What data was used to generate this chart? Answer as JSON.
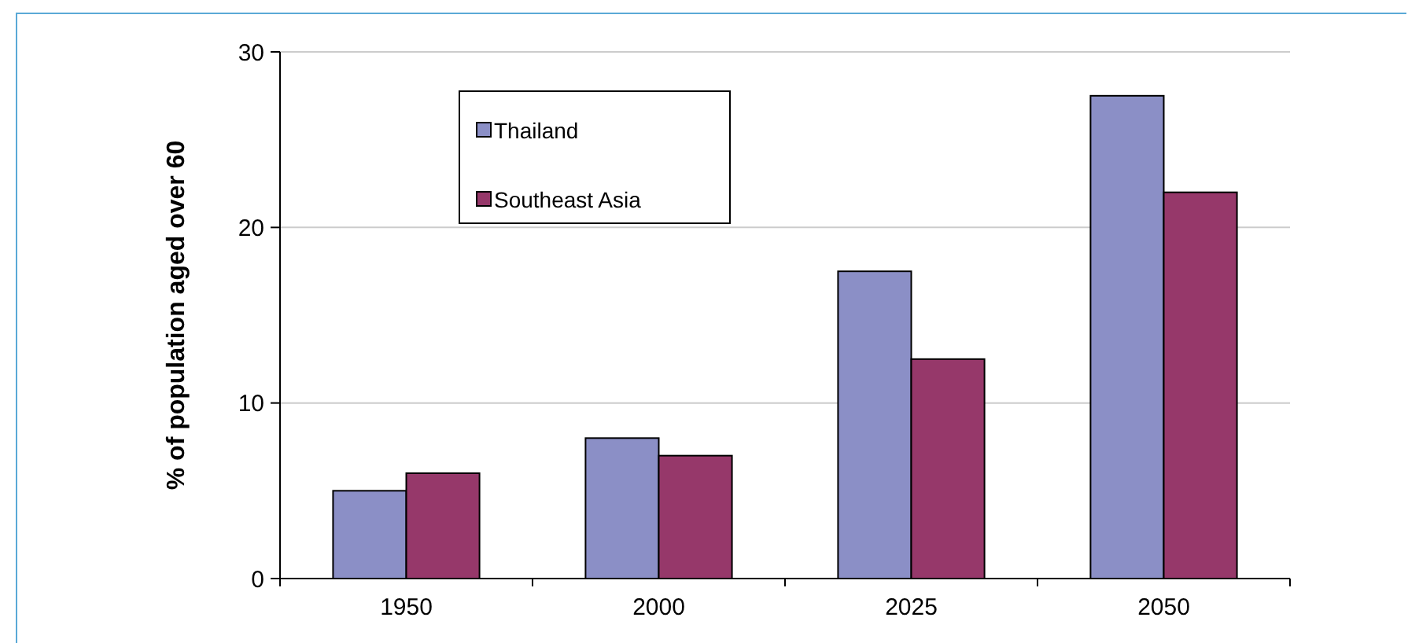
{
  "chart_data": {
    "type": "bar",
    "ylabel": "% of population aged over 60",
    "categories": [
      "1950",
      "2000",
      "2025",
      "2050"
    ],
    "series": [
      {
        "name": "Thailand",
        "color": "#8b8fc6",
        "values": [
          5,
          8,
          17.5,
          27.5
        ]
      },
      {
        "name": "Southeast Asia",
        "color": "#96386a",
        "values": [
          6,
          7,
          12.5,
          22
        ]
      }
    ],
    "ylim": [
      0,
      30
    ],
    "yticks": [
      0,
      10,
      20,
      30
    ],
    "grid": "y",
    "legend": "top left"
  }
}
